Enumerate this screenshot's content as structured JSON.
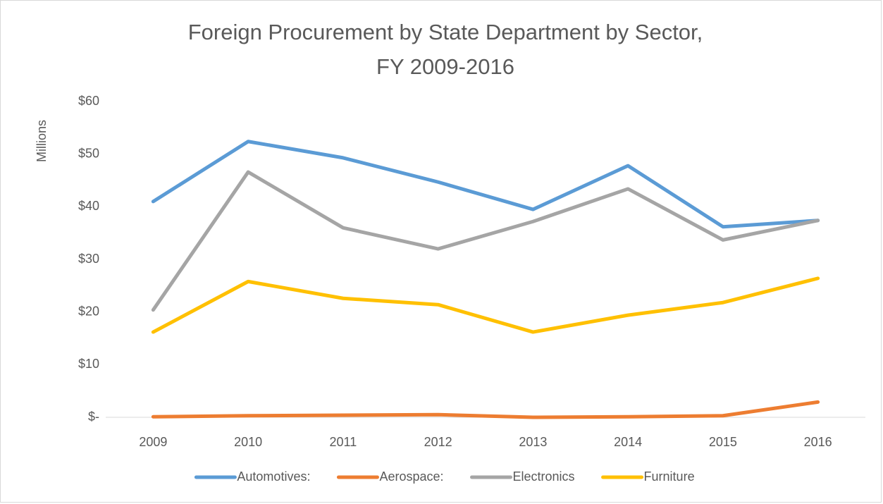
{
  "chart_data": {
    "type": "line",
    "title": [
      "Foreign Procurement by State Department by Sector,",
      "FY 2009-2016"
    ],
    "y_label": "Millions",
    "categories": [
      "2009",
      "2010",
      "2011",
      "2012",
      "2013",
      "2014",
      "2015",
      "2016"
    ],
    "series": [
      {
        "name": "Automotives:",
        "color": "#5b9bd5",
        "values": [
          41.0,
          52.4,
          49.3,
          44.7,
          39.5,
          47.8,
          36.2,
          37.4
        ]
      },
      {
        "name": "Aerospace:",
        "color": "#ed7d31",
        "values": [
          0.1,
          0.3,
          0.4,
          0.5,
          0,
          0.1,
          0.3,
          2.9
        ]
      },
      {
        "name": "Electronics",
        "color": "#a5a5a5",
        "values": [
          20.4,
          46.6,
          36.0,
          32.0,
          37.2,
          43.4,
          33.7,
          37.4
        ]
      },
      {
        "name": "Furniture",
        "color": "#ffc000",
        "values": [
          16.2,
          25.8,
          22.6,
          21.4,
          16.2,
          19.4,
          21.8,
          26.4
        ]
      }
    ],
    "ylim": [
      0,
      60
    ],
    "yticks": [
      {
        "value": 0,
        "label": "$-"
      },
      {
        "value": 10,
        "label": "$10"
      },
      {
        "value": 20,
        "label": "$20"
      },
      {
        "value": 30,
        "label": "$30"
      },
      {
        "value": 40,
        "label": "$40"
      },
      {
        "value": 50,
        "label": "$50"
      },
      {
        "value": 60,
        "label": "$60"
      }
    ],
    "grid": false,
    "legend": "bottom"
  }
}
